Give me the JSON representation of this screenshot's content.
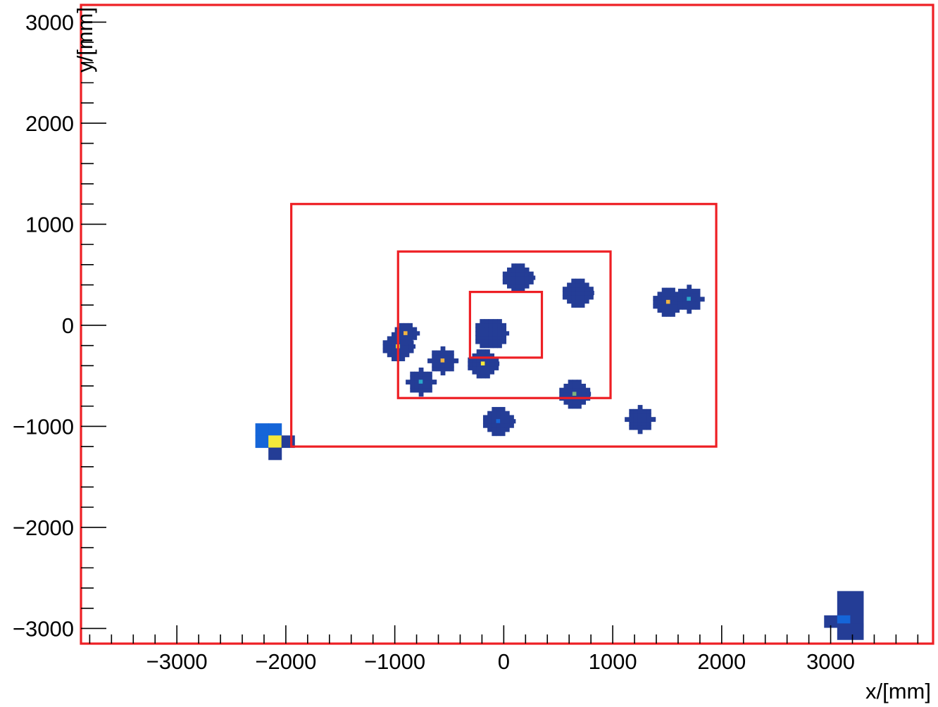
{
  "chart_data": {
    "type": "heatmap",
    "title": "",
    "xlabel": "x/[mm]",
    "ylabel": "y/[mm]",
    "xlim": [
      -3880,
      3940
    ],
    "ylim": [
      -3150,
      3170
    ],
    "x_ticks": [
      -3000,
      -2000,
      -1000,
      0,
      1000,
      2000,
      3000
    ],
    "x_tick_labels": [
      "−3000",
      "−2000",
      "−1000",
      "0",
      "1000",
      "2000",
      "3000"
    ],
    "y_ticks": [
      -3000,
      -2000,
      -1000,
      0,
      1000,
      2000,
      3000
    ],
    "y_tick_labels": [
      "−3000",
      "−2000",
      "−1000",
      "0",
      "1000",
      "2000",
      "3000"
    ],
    "grid": false,
    "colors": {
      "low": "#243d96",
      "mid": "#1565d8",
      "cyan": "#2aa6c9",
      "green": "#7fb07a",
      "orange": "#f0b341",
      "yellow": "#f4e83a",
      "frame": "#ee1f24"
    },
    "frames_mm": [
      {
        "name": "outer",
        "x": [
          -3880,
          3940
        ],
        "y": [
          -3150,
          3170
        ]
      },
      {
        "name": "large",
        "x": [
          -1950,
          1950
        ],
        "y": [
          -1200,
          1200
        ]
      },
      {
        "name": "middle",
        "x": [
          -970,
          980
        ],
        "y": [
          -720,
          730
        ]
      },
      {
        "name": "inner",
        "x": [
          -310,
          350
        ],
        "y": [
          -320,
          330
        ]
      }
    ],
    "clusters": [
      {
        "x": 130,
        "y": 470,
        "r": 140,
        "hot": null
      },
      {
        "x": 680,
        "y": 320,
        "r": 130,
        "hot": null
      },
      {
        "x": 1510,
        "y": 230,
        "r": 130,
        "hot": "orange"
      },
      {
        "x": 1700,
        "y": 260,
        "r": 120,
        "hot": "cyan"
      },
      {
        "x": -120,
        "y": -80,
        "r": 150,
        "hot": null
      },
      {
        "x": -970,
        "y": -210,
        "r": 140,
        "hot": "yellow"
      },
      {
        "x": -900,
        "y": -80,
        "r": 110,
        "hot": "orange"
      },
      {
        "x": -560,
        "y": -350,
        "r": 125,
        "hot": "orange"
      },
      {
        "x": -190,
        "y": -380,
        "r": 130,
        "hot": "yellow"
      },
      {
        "x": -760,
        "y": -560,
        "r": 125,
        "hot": "cyan"
      },
      {
        "x": 650,
        "y": -680,
        "r": 130,
        "hot": "green"
      },
      {
        "x": -50,
        "y": -950,
        "r": 140,
        "hot": "mid"
      },
      {
        "x": 1250,
        "y": -930,
        "r": 125,
        "hot": null
      }
    ],
    "cells": [
      {
        "x": -2280,
        "y": -1090,
        "w": 120,
        "h": 120,
        "c": "mid"
      },
      {
        "x": -2160,
        "y": -1090,
        "w": 120,
        "h": 120,
        "c": "mid"
      },
      {
        "x": -2280,
        "y": -1210,
        "w": 120,
        "h": 120,
        "c": "mid"
      },
      {
        "x": -2160,
        "y": -1210,
        "w": 120,
        "h": 120,
        "c": "yellow"
      },
      {
        "x": -2040,
        "y": -1210,
        "w": 120,
        "h": 120,
        "c": "low"
      },
      {
        "x": -2160,
        "y": -1330,
        "w": 120,
        "h": 120,
        "c": "low"
      },
      {
        "x": 3060,
        "y": -2870,
        "w": 240,
        "h": 240,
        "c": "low"
      },
      {
        "x": 2940,
        "y": -2990,
        "w": 120,
        "h": 120,
        "c": "low"
      },
      {
        "x": 3060,
        "y": -2990,
        "w": 120,
        "h": 120,
        "c": "mid"
      },
      {
        "x": 3180,
        "y": -2990,
        "w": 120,
        "h": 120,
        "c": "low"
      },
      {
        "x": 3060,
        "y": -3110,
        "w": 240,
        "h": 160,
        "c": "low"
      }
    ]
  }
}
